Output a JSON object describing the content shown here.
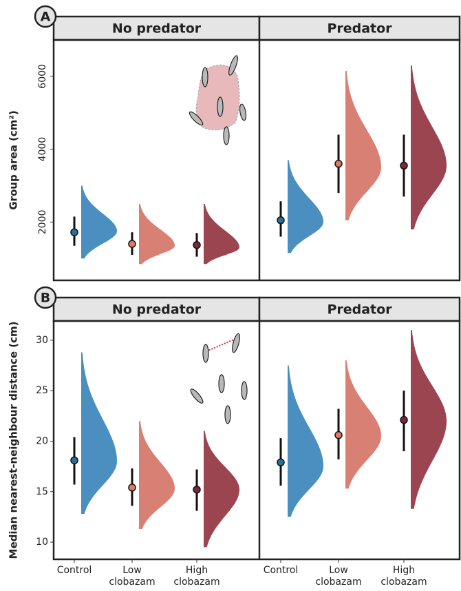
{
  "chart_data": [
    {
      "type": "raincloud",
      "panel": "A",
      "ylabel": "Group area (cm²)",
      "ylim": [
        400,
        7000
      ],
      "yticks": [
        2000,
        4000,
        6000
      ],
      "colors": [
        "#4a8fc0",
        "#d98074",
        "#9b4551"
      ],
      "point_colors": [
        "#2a6e9e",
        "#e07a62",
        "#7a2a35"
      ],
      "facets": [
        {
          "title": "No predator",
          "groups": [
            {
              "mean": 1720,
              "ci": [
                1350,
                2150
              ],
              "dist": [
                1000,
                1750,
                3000
              ]
            },
            {
              "mean": 1400,
              "ci": [
                1100,
                1720
              ],
              "dist": [
                850,
                1350,
                2500
              ]
            },
            {
              "mean": 1370,
              "ci": [
                1050,
                1700
              ],
              "dist": [
                850,
                1300,
                2500
              ]
            }
          ]
        },
        {
          "title": "Predator",
          "groups": [
            {
              "mean": 2050,
              "ci": [
                1600,
                2570
              ],
              "dist": [
                1150,
                2000,
                3700
              ]
            },
            {
              "mean": 3600,
              "ci": [
                2800,
                4400
              ],
              "dist": [
                2050,
                3500,
                6150
              ]
            },
            {
              "mean": 3550,
              "ci": [
                2700,
                4400
              ],
              "dist": [
                1800,
                3550,
                6300
              ]
            }
          ]
        }
      ]
    },
    {
      "type": "raincloud",
      "panel": "B",
      "ylabel": "Median nearest-neighbour distance (cm)",
      "ylim": [
        8.3,
        31.9
      ],
      "yticks": [
        10,
        15,
        20,
        25,
        30
      ],
      "categories": [
        "Control",
        "Low\nclobazam",
        "High\nclobazam"
      ],
      "colors": [
        "#4a8fc0",
        "#d98074",
        "#9b4551"
      ],
      "point_colors": [
        "#2a6e9e",
        "#e07a62",
        "#7a2a35"
      ],
      "facets": [
        {
          "title": "No predator",
          "groups": [
            {
              "mean": 18.1,
              "ci": [
                15.7,
                20.4
              ],
              "dist": [
                12.8,
                18.0,
                28.8
              ]
            },
            {
              "mean": 15.4,
              "ci": [
                13.6,
                17.3
              ],
              "dist": [
                11.3,
                15.3,
                22.0
              ]
            },
            {
              "mean": 15.2,
              "ci": [
                13.1,
                17.2
              ],
              "dist": [
                9.5,
                15.2,
                21.0
              ]
            }
          ]
        },
        {
          "title": "Predator",
          "groups": [
            {
              "mean": 17.9,
              "ci": [
                15.6,
                20.3
              ],
              "dist": [
                12.5,
                17.5,
                27.5
              ]
            },
            {
              "mean": 20.6,
              "ci": [
                18.2,
                23.2
              ],
              "dist": [
                15.3,
                20.5,
                28.0
              ]
            },
            {
              "mean": 22.1,
              "ci": [
                19.0,
                25.0
              ],
              "dist": [
                13.3,
                22.0,
                31.0
              ]
            }
          ]
        }
      ]
    }
  ]
}
